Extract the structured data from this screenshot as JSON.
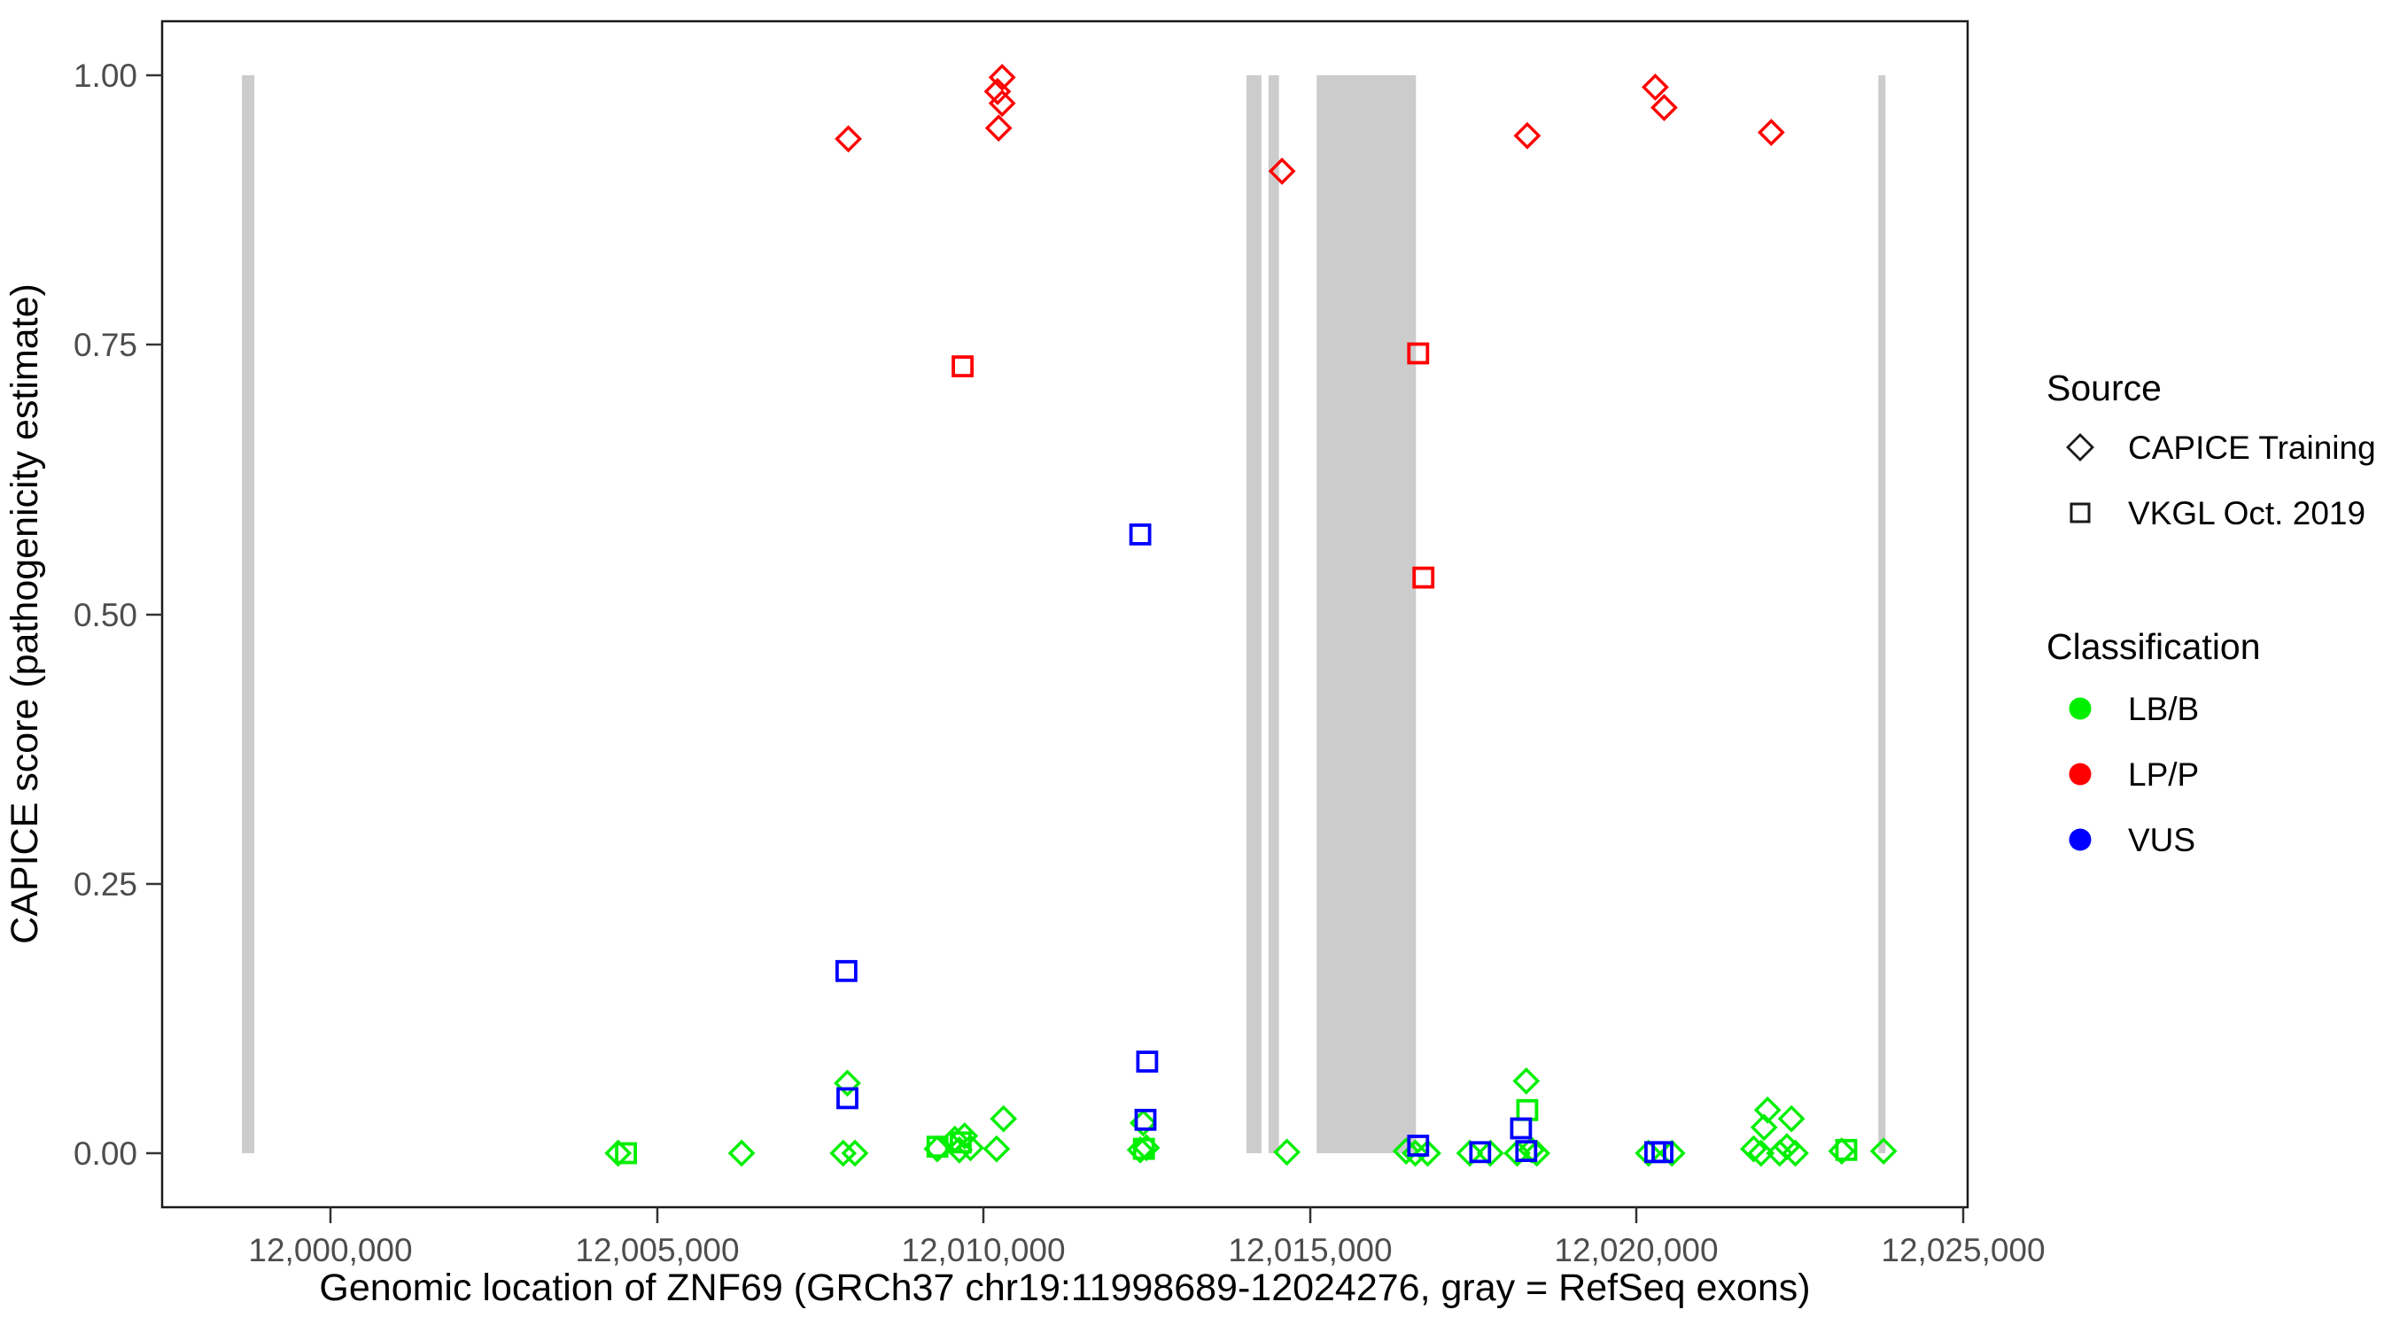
{
  "chart_data": {
    "type": "scatter",
    "title": "",
    "xlabel": "Genomic location of ZNF69 (GRCh37 chr19:11998689-12024276, gray = RefSeq exons)",
    "ylabel": "CAPICE score (pathogenicity estimate)",
    "xlim": [
      11997420,
      12025070
    ],
    "ylim": [
      -0.05,
      1.04
    ],
    "grid": "off",
    "x_ticks": [
      {
        "v": 12000000,
        "label": "12,000,000"
      },
      {
        "v": 12005000,
        "label": "12,005,000"
      },
      {
        "v": 12010000,
        "label": "12,010,000"
      },
      {
        "v": 12015000,
        "label": "12,015,000"
      },
      {
        "v": 12020000,
        "label": "12,020,000"
      },
      {
        "v": 12025000,
        "label": "12,025,000"
      }
    ],
    "y_ticks": [
      {
        "v": 0.0,
        "label": "0.00"
      },
      {
        "v": 0.25,
        "label": "0.25"
      },
      {
        "v": 0.5,
        "label": "0.50"
      },
      {
        "v": 0.75,
        "label": "0.75"
      },
      {
        "v": 1.0,
        "label": "1.00"
      }
    ],
    "colors": {
      "lbb": "#00ee00",
      "lpp": "#ff0000",
      "vus": "#0000ff",
      "exon": "#cccccc",
      "axis_text": "#4d4d4d",
      "panel_border": "#1a1a1a"
    },
    "exons_note": "gray = RefSeq exons, drawn as vertical bands spanning score 0 to 1",
    "exons": [
      [
        11998645,
        11998835
      ],
      [
        12014025,
        12014255
      ],
      [
        12014363,
        12014525
      ],
      [
        12015100,
        12016620
      ],
      [
        12023700,
        12023810
      ]
    ],
    "series": [
      {
        "name": "LB/B / CAPICE Training",
        "classification": "LB/B",
        "source": "CAPICE Training",
        "shape": "diamond",
        "color": "#00ee00",
        "points": [
          [
            12004405,
            0.0
          ],
          [
            12006295,
            0.0
          ],
          [
            12007850,
            0.0
          ],
          [
            12008030,
            0.0
          ],
          [
            12007915,
            0.065
          ],
          [
            12009290,
            0.004
          ],
          [
            12009560,
            0.013
          ],
          [
            12009630,
            0.003
          ],
          [
            12009710,
            0.016
          ],
          [
            12009800,
            0.005
          ],
          [
            12010200,
            0.004
          ],
          [
            12010305,
            0.032
          ],
          [
            12012400,
            0.003
          ],
          [
            12012445,
            0.028
          ],
          [
            12012495,
            0.005
          ],
          [
            12014645,
            0.001
          ],
          [
            12016470,
            0.002
          ],
          [
            12016610,
            0.0
          ],
          [
            12016800,
            0.0
          ],
          [
            12017445,
            0.0
          ],
          [
            12017760,
            0.0
          ],
          [
            12018170,
            0.0
          ],
          [
            12018310,
            0.067
          ],
          [
            12018390,
            0.003
          ],
          [
            12018470,
            0.0
          ],
          [
            12020180,
            0.0
          ],
          [
            12020540,
            0.0
          ],
          [
            12021790,
            0.004
          ],
          [
            12021905,
            0.0
          ],
          [
            12021950,
            0.024
          ],
          [
            12022005,
            0.04
          ],
          [
            12022190,
            0.0
          ],
          [
            12022300,
            0.006
          ],
          [
            12022370,
            0.032
          ],
          [
            12022430,
            0.0
          ],
          [
            12023140,
            0.002
          ],
          [
            12023780,
            0.002
          ]
        ]
      },
      {
        "name": "LB/B / VKGL Oct. 2019",
        "classification": "LB/B",
        "source": "VKGL Oct. 2019",
        "shape": "square",
        "color": "#00ee00",
        "points": [
          [
            12004525,
            0.0
          ],
          [
            12009295,
            0.006
          ],
          [
            12009650,
            0.01
          ],
          [
            12012455,
            0.004
          ],
          [
            12018325,
            0.04
          ],
          [
            12023210,
            0.003
          ]
        ]
      },
      {
        "name": "VUS / VKGL Oct. 2019",
        "classification": "VUS",
        "source": "VKGL Oct. 2019",
        "shape": "square",
        "color": "#0000ff",
        "points": [
          [
            12007900,
            0.169
          ],
          [
            12007915,
            0.051
          ],
          [
            12012400,
            0.574
          ],
          [
            12012505,
            0.085
          ],
          [
            12012480,
            0.031
          ],
          [
            12016655,
            0.007
          ],
          [
            12017605,
            0.001
          ],
          [
            12018230,
            0.023
          ],
          [
            12018310,
            0.002
          ],
          [
            12020285,
            0.001
          ],
          [
            12020395,
            0.001
          ]
        ]
      },
      {
        "name": "LP/P / CAPICE Training",
        "classification": "LP/P",
        "source": "CAPICE Training",
        "shape": "diamond",
        "color": "#ff0000",
        "points": [
          [
            12007930,
            0.941
          ],
          [
            12010215,
            0.985
          ],
          [
            12010285,
            0.998
          ],
          [
            12010230,
            0.951
          ],
          [
            12010285,
            0.974
          ],
          [
            12014570,
            0.911
          ],
          [
            12018325,
            0.944
          ],
          [
            12020285,
            0.989
          ],
          [
            12020420,
            0.97
          ],
          [
            12022060,
            0.947
          ]
        ]
      },
      {
        "name": "LP/P / VKGL Oct. 2019",
        "classification": "LP/P",
        "source": "VKGL Oct. 2019",
        "shape": "square",
        "color": "#ff0000",
        "points": [
          [
            12009680,
            0.73
          ],
          [
            12016655,
            0.742
          ],
          [
            12016735,
            0.534
          ]
        ]
      }
    ],
    "legend": {
      "position": "right",
      "source": {
        "title": "Source",
        "items": [
          {
            "label": "CAPICE Training",
            "shape": "diamond"
          },
          {
            "label": "VKGL Oct. 2019",
            "shape": "square"
          }
        ]
      },
      "classification": {
        "title": "Classification",
        "items": [
          {
            "label": "LB/B",
            "color": "#00ee00"
          },
          {
            "label": "LP/P",
            "color": "#ff0000"
          },
          {
            "label": "VUS",
            "color": "#0000ff"
          }
        ]
      }
    }
  }
}
